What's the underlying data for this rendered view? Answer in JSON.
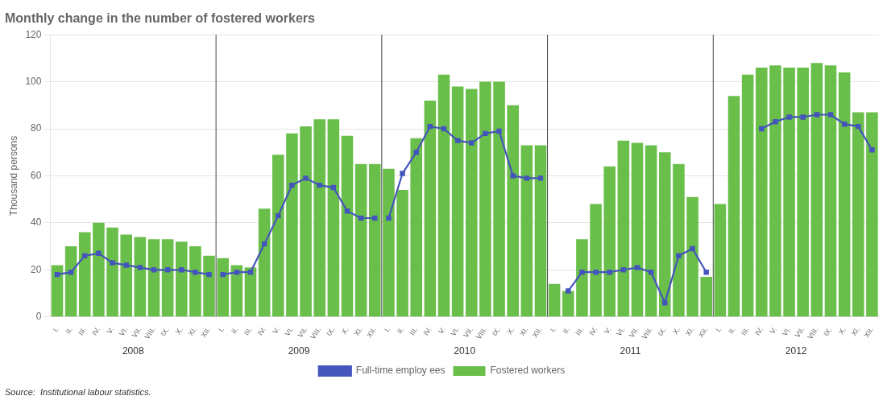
{
  "chart_data": {
    "type": "bar",
    "title": "Monthly change in the number of fostered workers",
    "y_label": "Thousand persons",
    "source": "Source:  Institutional labour statistics.",
    "annotations": [
      "2008",
      "2009",
      "2010",
      "2011",
      "2012"
    ],
    "categories": [
      "I.",
      "II.",
      "III.",
      "IV.",
      "V.",
      "VI.",
      "VII.",
      "VIII.",
      "IX.",
      "X.",
      "XI.",
      "XII.",
      "I.",
      "II.",
      "III.",
      "IV.",
      "V.",
      "VI.",
      "VII.",
      "VIII.",
      "IX.",
      "X.",
      "XI.",
      "XII.",
      "I.",
      "II.",
      "III.",
      "IV.",
      "V.",
      "VI.",
      "VII.",
      "VIII.",
      "IX.",
      "X.",
      "XI.",
      "XII.",
      "I.",
      "II.",
      "III.",
      "IV.",
      "V.",
      "VI.",
      "VII.",
      "VIII.",
      "IX.",
      "X.",
      "XI.",
      "XII.",
      "I.",
      "II.",
      "III.",
      "IV.",
      "V.",
      "VI.",
      "VII.",
      "VIII.",
      "IX.",
      "X.",
      "XI.",
      "XII."
    ],
    "series": [
      {
        "name": "Fostered workers",
        "type": "bar",
        "color": "#6abf4b",
        "values": [
          22,
          30,
          36,
          40,
          38,
          35,
          34,
          33,
          33,
          32,
          30,
          26,
          25,
          22,
          21,
          46,
          69,
          78,
          81,
          84,
          84,
          77,
          65,
          65,
          63,
          54,
          76,
          92,
          103,
          98,
          97,
          100,
          100,
          90,
          73,
          73,
          14,
          11,
          33,
          48,
          64,
          75,
          74,
          73,
          70,
          65,
          51,
          17,
          48,
          94,
          103,
          106,
          107,
          106,
          106,
          108,
          107,
          104,
          87,
          87
        ]
      },
      {
        "name": "Full-time employ ees",
        "type": "line",
        "color": "#4455bb",
        "marker": "square",
        "values": [
          18,
          19,
          26,
          27,
          23,
          22,
          21,
          20,
          20,
          20,
          19,
          18,
          18,
          19,
          19,
          31,
          43,
          56,
          59,
          56,
          55,
          45,
          42,
          42,
          42,
          61,
          70,
          81,
          80,
          75,
          74,
          78,
          79,
          60,
          59,
          59,
          null,
          11,
          19,
          19,
          19,
          20,
          21,
          19,
          6,
          26,
          29,
          19,
          null,
          null,
          null,
          80,
          83,
          85,
          85,
          86,
          86,
          82,
          81,
          71
        ]
      }
    ],
    "ylim": [
      0,
      120
    ],
    "yticks": [
      0,
      20,
      40,
      60,
      80,
      100,
      120
    ],
    "grid": true,
    "legend": "bottom"
  }
}
